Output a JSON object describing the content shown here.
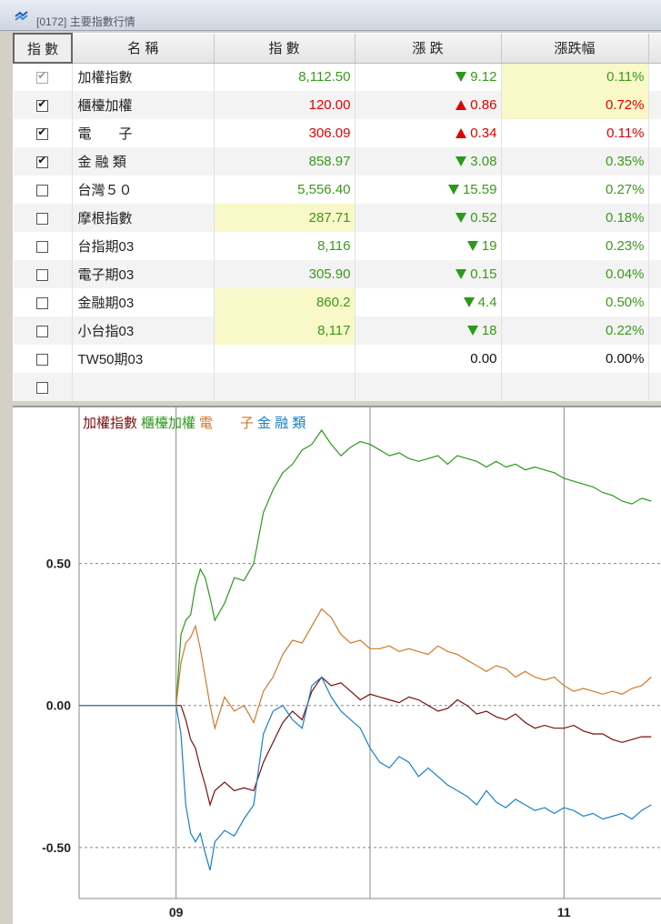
{
  "window": {
    "title": "[0172] 主要指數行情"
  },
  "table": {
    "headers": [
      "指 數",
      "名 稱",
      "指 數",
      "漲 跌",
      "漲跌幅"
    ],
    "rows": [
      {
        "checked": true,
        "dim": true,
        "name": "加權指數",
        "value": "8,112.50",
        "change": "9.12",
        "dir": "down",
        "pct": "0.11%",
        "color": "green",
        "hl_value": false,
        "hl_pct": true
      },
      {
        "checked": true,
        "dim": false,
        "name": "櫃檯加權",
        "value": "120.00",
        "change": "0.86",
        "dir": "up",
        "pct": "0.72%",
        "color": "red",
        "hl_value": false,
        "hl_pct": true
      },
      {
        "checked": true,
        "dim": false,
        "name": "電　　子",
        "value": "306.09",
        "change": "0.34",
        "dir": "up",
        "pct": "0.11%",
        "color": "red",
        "hl_value": false,
        "hl_pct": false
      },
      {
        "checked": true,
        "dim": false,
        "name": "金 融 類",
        "value": "858.97",
        "change": "3.08",
        "dir": "down",
        "pct": "0.35%",
        "color": "green",
        "hl_value": false,
        "hl_pct": false
      },
      {
        "checked": false,
        "dim": false,
        "name": "台灣５０",
        "value": "5,556.40",
        "change": "15.59",
        "dir": "down",
        "pct": "0.27%",
        "color": "green",
        "hl_value": false,
        "hl_pct": false
      },
      {
        "checked": false,
        "dim": false,
        "name": "摩根指數",
        "value": "287.71",
        "change": "0.52",
        "dir": "down",
        "pct": "0.18%",
        "color": "green",
        "hl_value": true,
        "hl_pct": false
      },
      {
        "checked": false,
        "dim": false,
        "name": "台指期03",
        "value": "8,116",
        "change": "19",
        "dir": "down",
        "pct": "0.23%",
        "color": "green",
        "hl_value": false,
        "hl_pct": false
      },
      {
        "checked": false,
        "dim": false,
        "name": "電子期03",
        "value": "305.90",
        "change": "0.15",
        "dir": "down",
        "pct": "0.04%",
        "color": "green",
        "hl_value": false,
        "hl_pct": false
      },
      {
        "checked": false,
        "dim": false,
        "name": "金融期03",
        "value": "860.2",
        "change": "4.4",
        "dir": "down",
        "pct": "0.50%",
        "color": "green",
        "hl_value": true,
        "hl_pct": false
      },
      {
        "checked": false,
        "dim": false,
        "name": "小台指03",
        "value": "8,117",
        "change": "18",
        "dir": "down",
        "pct": "0.22%",
        "color": "green",
        "hl_value": true,
        "hl_pct": false
      },
      {
        "checked": false,
        "dim": false,
        "name": "TW50期03",
        "value": "",
        "change": "0.00",
        "dir": "none",
        "pct": "0.00%",
        "color": "black",
        "hl_value": false,
        "hl_pct": false
      },
      {
        "checked": false,
        "dim": false,
        "name": "",
        "value": "",
        "change": "",
        "dir": "none",
        "pct": "",
        "color": "black",
        "hl_value": false,
        "hl_pct": false
      }
    ]
  },
  "chart_data": {
    "type": "line",
    "legend": [
      "加權指數",
      "櫃檯加權",
      "電　　子",
      "金 融 類"
    ],
    "y_ticks": [
      "0.50",
      "0.00",
      "-0.50"
    ],
    "x_ticks": [
      "09",
      "11"
    ],
    "ylim": [
      -0.68,
      1.05
    ],
    "xlim": [
      -0.5,
      2.5
    ],
    "grid": true,
    "x_hours": [
      -0.5,
      0.0,
      0.025,
      0.05,
      0.075,
      0.1,
      0.125,
      0.15,
      0.175,
      0.2,
      0.25,
      0.3,
      0.35,
      0.4,
      0.45,
      0.5,
      0.55,
      0.6,
      0.65,
      0.7,
      0.75,
      0.8,
      0.85,
      0.9,
      0.95,
      1.0,
      1.05,
      1.1,
      1.15,
      1.2,
      1.25,
      1.3,
      1.35,
      1.4,
      1.45,
      1.5,
      1.55,
      1.6,
      1.65,
      1.7,
      1.75,
      1.8,
      1.85,
      1.9,
      1.95,
      2.0,
      2.05,
      2.1,
      2.15,
      2.2,
      2.25,
      2.3,
      2.35,
      2.4,
      2.45
    ],
    "series": [
      {
        "name": "加權指數",
        "color": "#7a0f0f",
        "values": [
          0.0,
          0.0,
          0.0,
          -0.05,
          -0.12,
          -0.15,
          -0.22,
          -0.28,
          -0.35,
          -0.3,
          -0.27,
          -0.3,
          -0.29,
          -0.3,
          -0.2,
          -0.13,
          -0.06,
          -0.02,
          -0.05,
          0.05,
          0.1,
          0.07,
          0.08,
          0.05,
          0.02,
          0.04,
          0.03,
          0.02,
          0.01,
          0.03,
          0.02,
          0.0,
          -0.02,
          -0.01,
          0.02,
          0.0,
          -0.03,
          -0.02,
          -0.04,
          -0.05,
          -0.03,
          -0.06,
          -0.08,
          -0.07,
          -0.08,
          -0.08,
          -0.07,
          -0.09,
          -0.1,
          -0.1,
          -0.12,
          -0.13,
          -0.12,
          -0.11,
          -0.11
        ]
      },
      {
        "name": "櫃檯加權",
        "color": "#2a9a1a",
        "values": [
          0.0,
          0.0,
          0.25,
          0.3,
          0.32,
          0.42,
          0.48,
          0.45,
          0.38,
          0.3,
          0.36,
          0.45,
          0.44,
          0.5,
          0.68,
          0.76,
          0.82,
          0.85,
          0.9,
          0.92,
          0.97,
          0.92,
          0.88,
          0.91,
          0.93,
          0.92,
          0.9,
          0.88,
          0.89,
          0.87,
          0.86,
          0.87,
          0.88,
          0.85,
          0.88,
          0.87,
          0.86,
          0.84,
          0.86,
          0.84,
          0.85,
          0.83,
          0.84,
          0.83,
          0.82,
          0.8,
          0.79,
          0.78,
          0.77,
          0.75,
          0.74,
          0.72,
          0.71,
          0.73,
          0.72
        ]
      },
      {
        "name": "電　　子",
        "color": "#d07a2a",
        "values": [
          0.0,
          0.0,
          0.15,
          0.22,
          0.24,
          0.28,
          0.2,
          0.1,
          0.0,
          -0.08,
          0.03,
          -0.02,
          0.0,
          -0.06,
          0.05,
          0.1,
          0.18,
          0.23,
          0.22,
          0.28,
          0.34,
          0.31,
          0.25,
          0.22,
          0.23,
          0.2,
          0.2,
          0.21,
          0.19,
          0.2,
          0.19,
          0.18,
          0.21,
          0.19,
          0.18,
          0.16,
          0.14,
          0.12,
          0.14,
          0.13,
          0.1,
          0.12,
          0.1,
          0.09,
          0.1,
          0.07,
          0.05,
          0.06,
          0.05,
          0.04,
          0.05,
          0.04,
          0.06,
          0.07,
          0.1
        ]
      },
      {
        "name": "金 融 類",
        "color": "#1a80c8",
        "values": [
          0.0,
          0.0,
          -0.1,
          -0.35,
          -0.45,
          -0.48,
          -0.45,
          -0.52,
          -0.58,
          -0.48,
          -0.44,
          -0.46,
          -0.4,
          -0.35,
          -0.1,
          -0.02,
          0.0,
          -0.05,
          -0.08,
          0.07,
          0.1,
          0.03,
          -0.02,
          -0.05,
          -0.08,
          -0.15,
          -0.2,
          -0.22,
          -0.18,
          -0.2,
          -0.25,
          -0.22,
          -0.25,
          -0.28,
          -0.3,
          -0.32,
          -0.35,
          -0.3,
          -0.34,
          -0.36,
          -0.33,
          -0.35,
          -0.37,
          -0.36,
          -0.38,
          -0.36,
          -0.37,
          -0.39,
          -0.38,
          -0.4,
          -0.39,
          -0.38,
          -0.4,
          -0.37,
          -0.35
        ]
      }
    ]
  }
}
